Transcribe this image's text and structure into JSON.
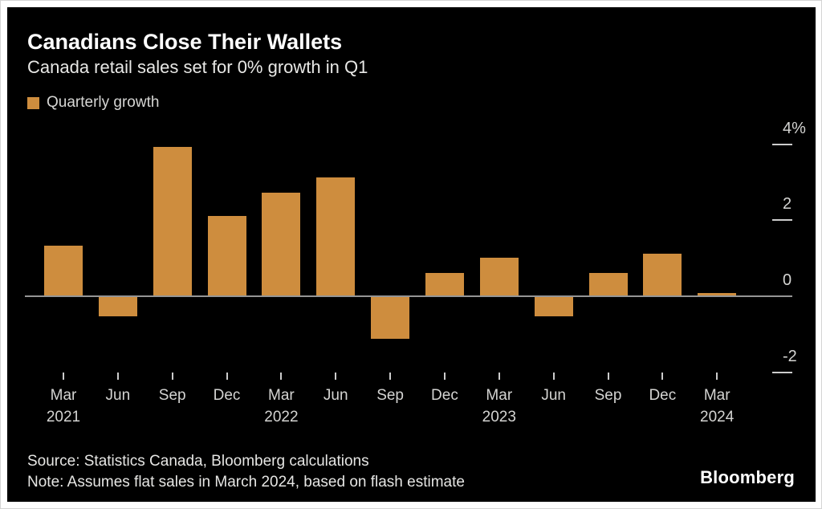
{
  "header": {
    "title": "Canadians Close Their Wallets",
    "subtitle": "Canada retail sales set for 0% growth in Q1"
  },
  "legend": {
    "label": "Quarterly growth",
    "swatch_color": "#CE8D3E"
  },
  "chart_data": {
    "type": "bar",
    "title": "Canadians Close Their Wallets",
    "subtitle": "Canada retail sales set for 0% growth in Q1",
    "series_name": "Quarterly growth",
    "categories": [
      "Mar 2021",
      "Jun 2021",
      "Sep 2021",
      "Dec 2021",
      "Mar 2022",
      "Jun 2022",
      "Sep 2022",
      "Dec 2022",
      "Mar 2023",
      "Jun 2023",
      "Sep 2023",
      "Dec 2023",
      "Mar 2024"
    ],
    "values": [
      1.3,
      -0.5,
      3.9,
      2.1,
      2.7,
      3.1,
      -1.1,
      0.6,
      1.0,
      -0.5,
      0.6,
      1.1,
      0.0
    ],
    "unit": "%",
    "x_month_labels": [
      "Mar",
      "Jun",
      "Sep",
      "Dec",
      "Mar",
      "Jun",
      "Sep",
      "Dec",
      "Mar",
      "Jun",
      "Sep",
      "Dec",
      "Mar"
    ],
    "x_year_labels": [
      {
        "index": 0,
        "year": "2021"
      },
      {
        "index": 4,
        "year": "2022"
      },
      {
        "index": 8,
        "year": "2023"
      },
      {
        "index": 12,
        "year": "2024"
      }
    ],
    "y_ticks": [
      {
        "value": 4,
        "label": "4%"
      },
      {
        "value": 2,
        "label": "2"
      },
      {
        "value": 0,
        "label": "0"
      },
      {
        "value": -2,
        "label": "-2"
      }
    ],
    "ylim": [
      -2.6,
      4.4
    ],
    "grid": false,
    "legend_position": "top-left",
    "bar_color": "#CE8D3E",
    "background_color": "#000000"
  },
  "footer": {
    "source": "Source: Statistics Canada, Bloomberg calculations",
    "note": "Note: Assumes flat sales in March 2024, based on flash estimate",
    "logo": "Bloomberg"
  }
}
